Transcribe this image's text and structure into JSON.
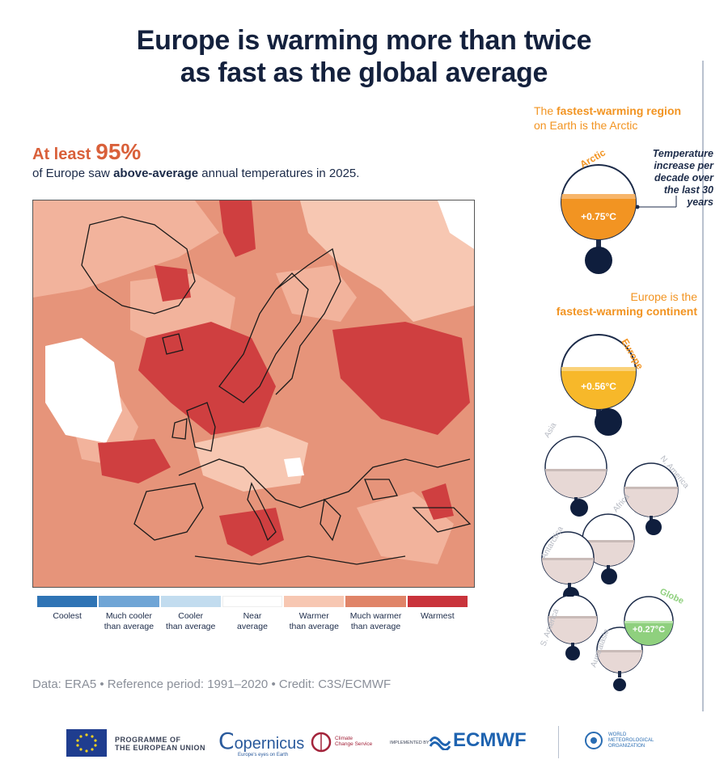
{
  "title": {
    "line1": "Europe is warming more than twice",
    "line2": "as fast as the global average"
  },
  "stat": {
    "prefix": "At least",
    "value": "95%",
    "text_before": "of Europe saw",
    "text_bold": "above-average",
    "text_after": "annual temperatures in 2025."
  },
  "legend": [
    {
      "label": "Coolest",
      "color": "#2f74b5"
    },
    {
      "label": "Much cooler\nthan average",
      "color": "#6fa5d6"
    },
    {
      "label": "Cooler\nthan average",
      "color": "#c2dcef"
    },
    {
      "label": "Near\naverage",
      "color": "#ffffff"
    },
    {
      "label": "Warmer\nthan average",
      "color": "#f7c7b2"
    },
    {
      "label": "Much warmer\nthan average",
      "color": "#e08468"
    },
    {
      "label": "Warmest",
      "color": "#c9333b"
    }
  ],
  "credit": "Data: ERA5 • Reference period: 1991–2020 • Credit: C3S/ECMWF",
  "right_panel": {
    "arctic_heading_pre": "The",
    "arctic_heading_bold": "fastest-warming region",
    "arctic_heading_post": "on Earth is the Arctic",
    "note": "Temperature increase per decade over the last 30 years",
    "europe_heading_line1": "Europe is the",
    "europe_heading_line2": "fastest-warming continent",
    "regions": {
      "arctic": {
        "name": "Arctic",
        "value": "+0.75°C"
      },
      "europe": {
        "name": "Europe",
        "value": "+0.56°C"
      },
      "asia": {
        "name": "Asia"
      },
      "namerica": {
        "name": "N. America"
      },
      "africa": {
        "name": "Africa"
      },
      "antarctica": {
        "name": "Antarctica"
      },
      "samerica": {
        "name": "S. America"
      },
      "australasia": {
        "name": "Australasia"
      },
      "globe": {
        "name": "Globe",
        "value": "+0.27°C"
      }
    }
  },
  "footer": {
    "eu_line1": "PROGRAMME OF",
    "eu_line2": "THE EUROPEAN UNION",
    "copernicus": "opernicus",
    "copernicus_tag": "Europe's eyes on Earth",
    "c3s_line1": "Climate",
    "c3s_line2": "Change Service",
    "implemented": "IMPLEMENTED BY",
    "ecmwf": "ECMWF",
    "wmo_line1": "WORLD",
    "wmo_line2": "METEOROLOGICAL",
    "wmo_line3": "ORGANIZATION"
  },
  "colors": {
    "orange": "#f29422",
    "yellow": "#f7b82a",
    "green": "#8fd07e",
    "grey": "#e7d8d5",
    "navy": "#0f1e3d",
    "red": "#d9603a"
  }
}
